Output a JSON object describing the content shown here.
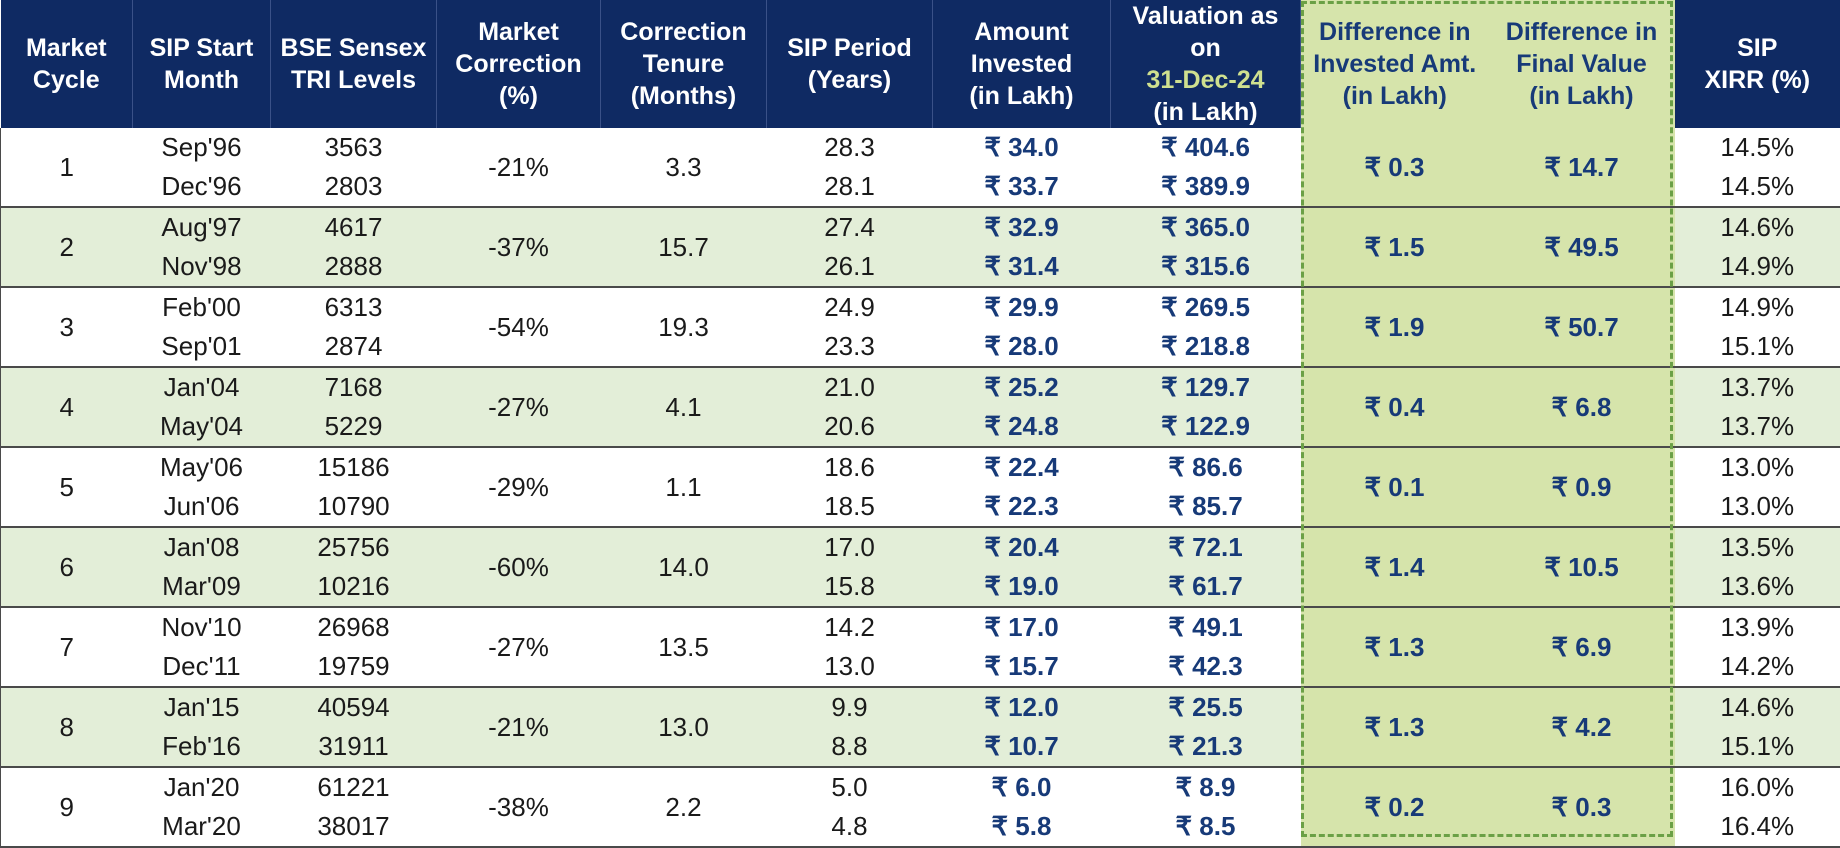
{
  "chart_data": {
    "type": "table",
    "headers": [
      {
        "key": "cycle",
        "lines": [
          "Market",
          "Cycle"
        ]
      },
      {
        "key": "start_month",
        "lines": [
          "SIP Start",
          "Month"
        ]
      },
      {
        "key": "sensex",
        "lines": [
          "BSE Sensex",
          "TRI Levels"
        ]
      },
      {
        "key": "correction",
        "lines": [
          "Market",
          "Correction",
          "(%)"
        ]
      },
      {
        "key": "tenure",
        "lines": [
          "Correction",
          "Tenure",
          "(Months)"
        ]
      },
      {
        "key": "period",
        "lines": [
          "SIP Period",
          "(Years)"
        ]
      },
      {
        "key": "invested",
        "lines": [
          "Amount",
          "Invested",
          "(in Lakh)"
        ]
      },
      {
        "key": "valuation",
        "lines": [
          "Valuation as on",
          "31-Dec-24",
          "(in Lakh)"
        ]
      },
      {
        "key": "diff_invested",
        "lines": [
          "Difference in",
          "Invested Amt.",
          "(in Lakh)"
        ]
      },
      {
        "key": "diff_value",
        "lines": [
          "Difference in",
          "Final Value",
          "(in Lakh)"
        ]
      },
      {
        "key": "xirr",
        "lines": [
          "SIP",
          "XIRR (%)"
        ]
      }
    ],
    "rows": [
      {
        "cycle": "1",
        "start_month": [
          "Sep'96",
          "Dec'96"
        ],
        "sensex": [
          "3563",
          "2803"
        ],
        "correction": "-21%",
        "tenure": "3.3",
        "period": [
          "28.3",
          "28.1"
        ],
        "invested": [
          "₹ 34.0",
          "₹ 33.7"
        ],
        "valuation": [
          "₹ 404.6",
          "₹ 389.9"
        ],
        "diff_invested": "₹ 0.3",
        "diff_value": "₹ 14.7",
        "xirr": [
          "14.5%",
          "14.5%"
        ]
      },
      {
        "cycle": "2",
        "start_month": [
          "Aug'97",
          "Nov'98"
        ],
        "sensex": [
          "4617",
          "2888"
        ],
        "correction": "-37%",
        "tenure": "15.7",
        "period": [
          "27.4",
          "26.1"
        ],
        "invested": [
          "₹ 32.9",
          "₹ 31.4"
        ],
        "valuation": [
          "₹ 365.0",
          "₹ 315.6"
        ],
        "diff_invested": "₹ 1.5",
        "diff_value": "₹ 49.5",
        "xirr": [
          "14.6%",
          "14.9%"
        ]
      },
      {
        "cycle": "3",
        "start_month": [
          "Feb'00",
          "Sep'01"
        ],
        "sensex": [
          "6313",
          "2874"
        ],
        "correction": "-54%",
        "tenure": "19.3",
        "period": [
          "24.9",
          "23.3"
        ],
        "invested": [
          "₹ 29.9",
          "₹ 28.0"
        ],
        "valuation": [
          "₹ 269.5",
          "₹ 218.8"
        ],
        "diff_invested": "₹ 1.9",
        "diff_value": "₹ 50.7",
        "xirr": [
          "14.9%",
          "15.1%"
        ]
      },
      {
        "cycle": "4",
        "start_month": [
          "Jan'04",
          "May'04"
        ],
        "sensex": [
          "7168",
          "5229"
        ],
        "correction": "-27%",
        "tenure": "4.1",
        "period": [
          "21.0",
          "20.6"
        ],
        "invested": [
          "₹ 25.2",
          "₹ 24.8"
        ],
        "valuation": [
          "₹ 129.7",
          "₹ 122.9"
        ],
        "diff_invested": "₹ 0.4",
        "diff_value": "₹ 6.8",
        "xirr": [
          "13.7%",
          "13.7%"
        ]
      },
      {
        "cycle": "5",
        "start_month": [
          "May'06",
          "Jun'06"
        ],
        "sensex": [
          "15186",
          "10790"
        ],
        "correction": "-29%",
        "tenure": "1.1",
        "period": [
          "18.6",
          "18.5"
        ],
        "invested": [
          "₹ 22.4",
          "₹ 22.3"
        ],
        "valuation": [
          "₹ 86.6",
          "₹ 85.7"
        ],
        "diff_invested": "₹ 0.1",
        "diff_value": "₹ 0.9",
        "xirr": [
          "13.0%",
          "13.0%"
        ]
      },
      {
        "cycle": "6",
        "start_month": [
          "Jan'08",
          "Mar'09"
        ],
        "sensex": [
          "25756",
          "10216"
        ],
        "correction": "-60%",
        "tenure": "14.0",
        "period": [
          "17.0",
          "15.8"
        ],
        "invested": [
          "₹ 20.4",
          "₹ 19.0"
        ],
        "valuation": [
          "₹ 72.1",
          "₹ 61.7"
        ],
        "diff_invested": "₹ 1.4",
        "diff_value": "₹ 10.5",
        "xirr": [
          "13.5%",
          "13.6%"
        ]
      },
      {
        "cycle": "7",
        "start_month": [
          "Nov'10",
          "Dec'11"
        ],
        "sensex": [
          "26968",
          "19759"
        ],
        "correction": "-27%",
        "tenure": "13.5",
        "period": [
          "14.2",
          "13.0"
        ],
        "invested": [
          "₹ 17.0",
          "₹ 15.7"
        ],
        "valuation": [
          "₹ 49.1",
          "₹ 42.3"
        ],
        "diff_invested": "₹ 1.3",
        "diff_value": "₹ 6.9",
        "xirr": [
          "13.9%",
          "14.2%"
        ]
      },
      {
        "cycle": "8",
        "start_month": [
          "Jan'15",
          "Feb'16"
        ],
        "sensex": [
          "40594",
          "31911"
        ],
        "correction": "-21%",
        "tenure": "13.0",
        "period": [
          "9.9",
          "8.8"
        ],
        "invested": [
          "₹ 12.0",
          "₹ 10.7"
        ],
        "valuation": [
          "₹ 25.5",
          "₹ 21.3"
        ],
        "diff_invested": "₹ 1.3",
        "diff_value": "₹ 4.2",
        "xirr": [
          "14.6%",
          "15.1%"
        ]
      },
      {
        "cycle": "9",
        "start_month": [
          "Jan'20",
          "Mar'20"
        ],
        "sensex": [
          "61221",
          "38017"
        ],
        "correction": "-38%",
        "tenure": "2.2",
        "period": [
          "5.0",
          "4.8"
        ],
        "invested": [
          "₹ 6.0",
          "₹ 5.8"
        ],
        "valuation": [
          "₹ 8.9",
          "₹ 8.5"
        ],
        "diff_invested": "₹ 0.2",
        "diff_value": "₹ 0.3",
        "xirr": [
          "16.0%",
          "16.4%"
        ]
      }
    ],
    "colors": {
      "header_bg": "#0f2a63",
      "header_text": "#ffffff",
      "highlight_text": "#cfe08f",
      "highlight_col_bg": "#d6e4ab",
      "highlight_col_text": "#173a78",
      "alt_row_bg": "#e3eed8",
      "amount_text": "#173a78",
      "dashed_border": "#6ba046"
    }
  }
}
